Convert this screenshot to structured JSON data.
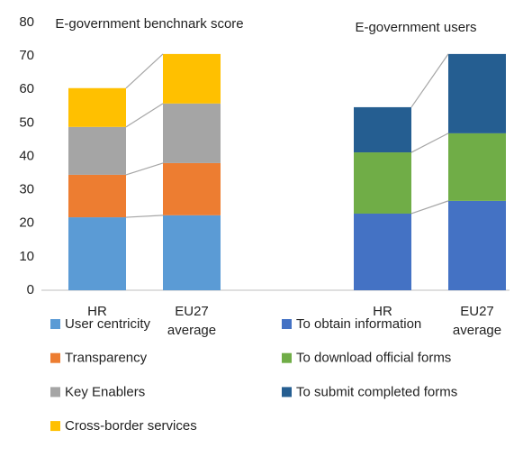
{
  "chart_data": {
    "type": "bar",
    "stacked": true,
    "ylim": [
      0,
      80
    ],
    "yticks": [
      0,
      10,
      20,
      30,
      40,
      50,
      60,
      70,
      80
    ],
    "groups": [
      {
        "title": "E-government benchnark score",
        "categories": [
          "HR",
          "EU27 average"
        ],
        "series": [
          {
            "name": "User centricity",
            "color": "#5b9bd5",
            "values": [
              21.8,
              22.4
            ]
          },
          {
            "name": "Transparency",
            "color": "#ed7d31",
            "values": [
              12.7,
              15.6
            ]
          },
          {
            "name": "Key Enablers",
            "color": "#a5a5a5",
            "values": [
              14.3,
              17.8
            ]
          },
          {
            "name": "Cross-border services",
            "color": "#ffc000",
            "values": [
              11.6,
              14.8
            ]
          }
        ]
      },
      {
        "title": "E-government users",
        "categories": [
          "HR",
          "EU27 average"
        ],
        "series": [
          {
            "name": "To obtain information",
            "color": "#4472c4",
            "values": [
              22.9,
              26.7
            ]
          },
          {
            "name": "To download official forms",
            "color": "#70ad47",
            "values": [
              18.3,
              20.2
            ]
          },
          {
            "name": "To submit completed forms",
            "color": "#255e91",
            "values": [
              13.5,
              23.7
            ]
          }
        ]
      }
    ]
  }
}
